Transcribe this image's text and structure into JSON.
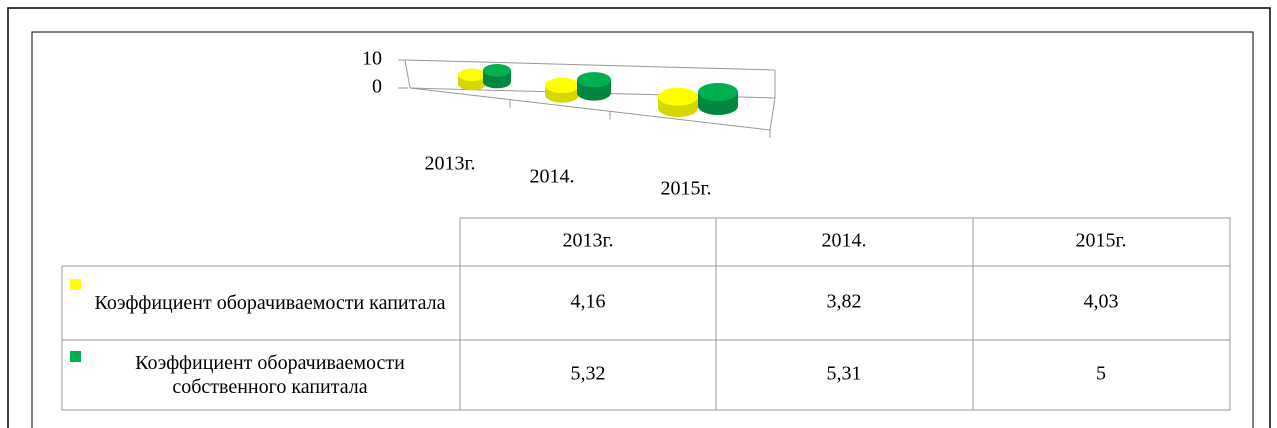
{
  "chart_data": {
    "type": "bar3d",
    "categories": [
      "2013г.",
      "2014.",
      "2015г."
    ],
    "series": [
      {
        "name": "Коэффициент оборачиваемости капитала",
        "color": "#ffff00",
        "values": [
          4.16,
          3.82,
          4.03
        ],
        "value_labels": [
          "4,16",
          "3,82",
          "4,03"
        ]
      },
      {
        "name": "Коэффициент оборачиваемости собственного капитала",
        "color": "#00b050",
        "values": [
          5.32,
          5.31,
          5
        ],
        "value_labels": [
          "5,32",
          "5,31",
          "5"
        ]
      }
    ],
    "ylim": [
      0,
      10
    ],
    "yticks": [
      0,
      10
    ]
  }
}
